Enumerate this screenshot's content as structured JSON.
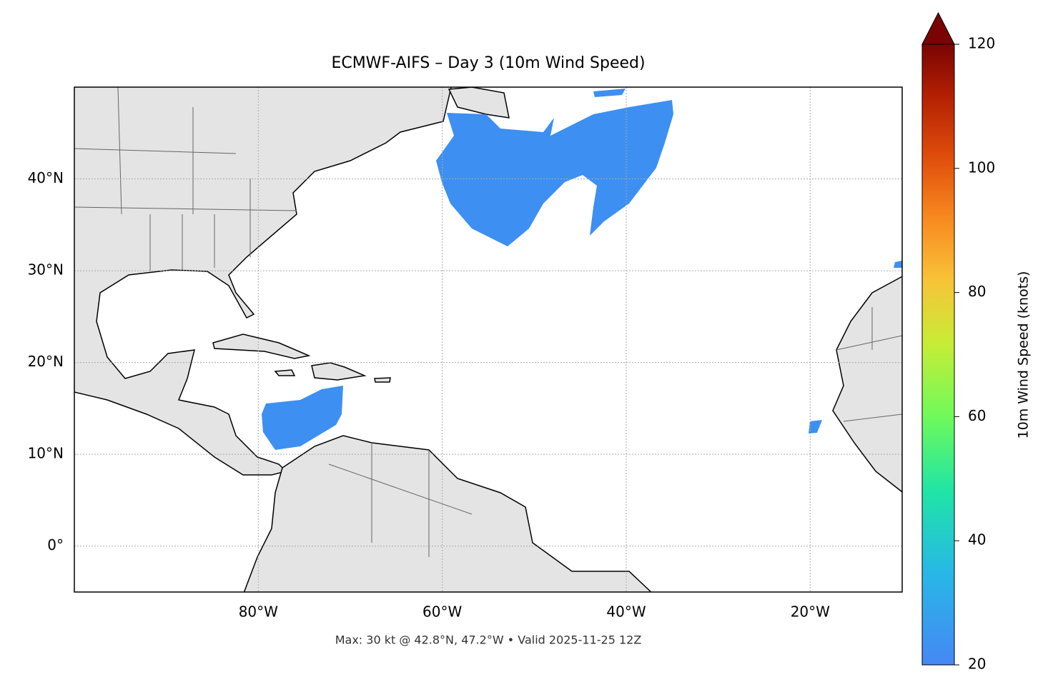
{
  "chart_data": {
    "type": "map",
    "title": "ECMWF-AIFS – Day 3 (10m Wind Speed)",
    "footer": "Max: 30 kt @ 42.8°N, 47.2°W • Valid 2025-11-25 12Z",
    "xlim": [
      -100,
      -10
    ],
    "ylim": [
      -5,
      50
    ],
    "xticks": [
      {
        "value": -80,
        "label": "80°W"
      },
      {
        "value": -60,
        "label": "60°W"
      },
      {
        "value": -40,
        "label": "40°W"
      },
      {
        "value": -20,
        "label": "20°W"
      }
    ],
    "yticks": [
      {
        "value": 0,
        "label": "0°"
      },
      {
        "value": 10,
        "label": "10°N"
      },
      {
        "value": 20,
        "label": "20°N"
      },
      {
        "value": 30,
        "label": "30°N"
      },
      {
        "value": 40,
        "label": "40°N"
      }
    ],
    "grid": true,
    "colorbar": {
      "label": "10m Wind Speed (knots)",
      "lim": [
        20,
        120
      ],
      "ticks": [
        20,
        40,
        60,
        80,
        100,
        120
      ],
      "extend": "max"
    }
  }
}
